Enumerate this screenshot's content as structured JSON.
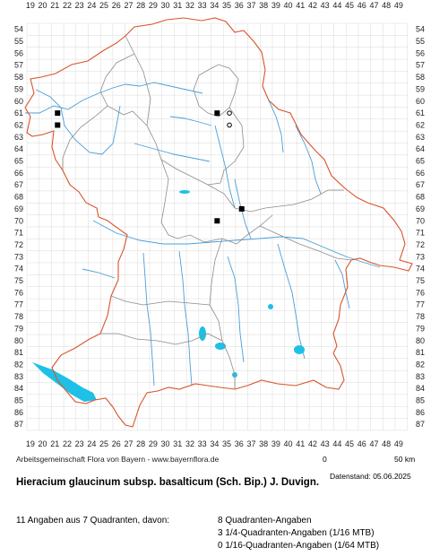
{
  "x_ticks": [
    "19",
    "20",
    "21",
    "22",
    "23",
    "24",
    "25",
    "26",
    "27",
    "28",
    "29",
    "30",
    "31",
    "32",
    "33",
    "34",
    "35",
    "36",
    "37",
    "38",
    "39",
    "40",
    "41",
    "42",
    "43",
    "44",
    "45",
    "46",
    "47",
    "48",
    "49"
  ],
  "y_ticks": [
    "54",
    "55",
    "56",
    "57",
    "58",
    "59",
    "60",
    "61",
    "62",
    "63",
    "64",
    "65",
    "66",
    "67",
    "68",
    "69",
    "70",
    "71",
    "72",
    "73",
    "74",
    "75",
    "76",
    "77",
    "78",
    "79",
    "80",
    "81",
    "82",
    "83",
    "84",
    "85",
    "86",
    "87"
  ],
  "colors": {
    "grid": "#cfcfcf",
    "state_border": "#d9542b",
    "district_border": "#8c8c8c",
    "rivers": "#4a9fd8",
    "lakes": "#1ec0e6",
    "record": "#000000"
  },
  "records": [
    {
      "col": "21",
      "row": "61",
      "kind": "quadrant"
    },
    {
      "col": "21",
      "row": "62",
      "kind": "quadrant"
    },
    {
      "col": "34",
      "row": "61",
      "kind": "quadrant"
    },
    {
      "col": "34",
      "row": "70",
      "kind": "quadrant"
    },
    {
      "col": "36",
      "row": "69",
      "kind": "quadrant"
    },
    {
      "col": "35",
      "row": "61",
      "kind": "quarter"
    },
    {
      "col": "35",
      "row": "62",
      "kind": "quarter"
    }
  ],
  "footer": {
    "credit": "Arbeitsgemeinschaft Flora von Bayern - www.bayernflora.de",
    "scale_zero": "0",
    "scale_label": "50 km",
    "datestand": "Datenstand: 05.06.2025",
    "title": "Hieracium glaucinum subsp. basalticum (Sch. Bip.) J. Duvign.",
    "summary": "11 Angaben aus 7 Quadranten, davon:",
    "stats": [
      "8 Quadranten-Angaben",
      "3 1/4-Quadranten-Angaben (1/16 MTB)",
      "0 1/16-Quadranten-Angaben (1/64 MTB)"
    ]
  }
}
